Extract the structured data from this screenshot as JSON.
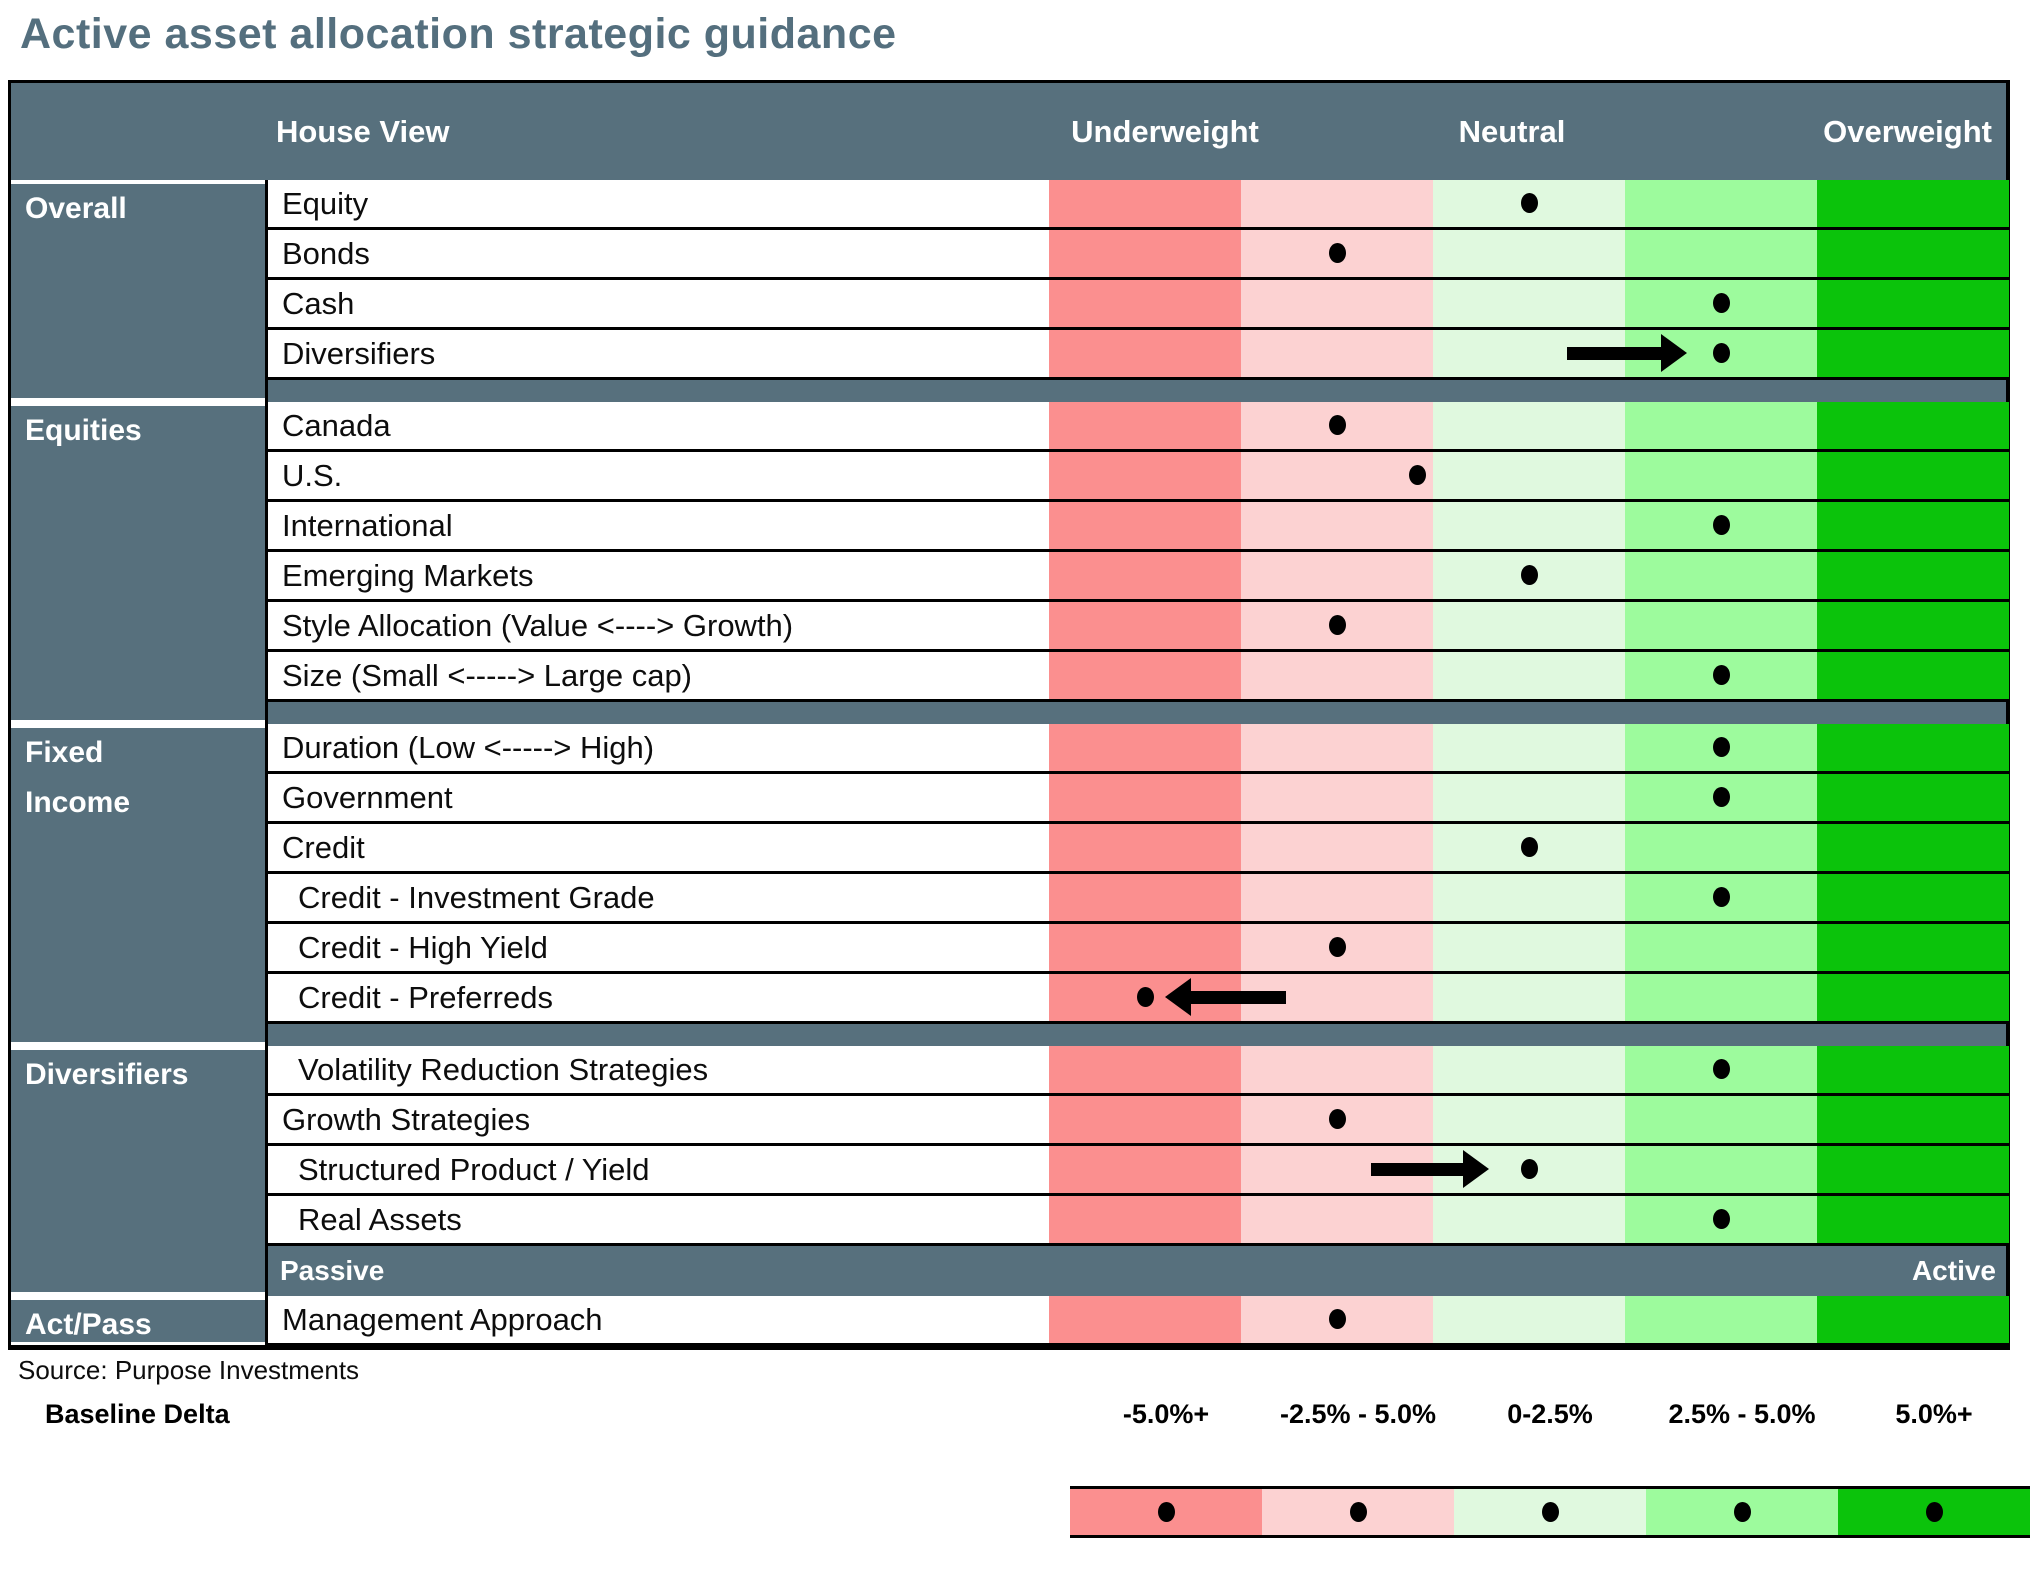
{
  "chart_data": {
    "type": "table",
    "title": "Active asset allocation strategic guidance",
    "header": {
      "house_view": "House View",
      "underweight": "Underweight",
      "neutral": "Neutral",
      "overweight": "Overweight"
    },
    "colors": {
      "slate": "#57707D",
      "title_text": "#546F7E",
      "dot": "#000000",
      "band_colors": [
        "#FB8F8F",
        "#FCD2D2",
        "#E0F9DF",
        "#9DFB9D",
        "#0BC30B"
      ]
    },
    "sections": [
      {
        "category": "Overall",
        "category_lines": [
          "Overall"
        ],
        "rows": [
          {
            "label": "Equity",
            "band": 3,
            "pos": 3.0,
            "indent": false,
            "arrow": null
          },
          {
            "label": "Bonds",
            "band": 2,
            "pos": 2.0,
            "indent": false,
            "arrow": null
          },
          {
            "label": "Cash",
            "band": 4,
            "pos": 4.0,
            "indent": false,
            "arrow": null
          },
          {
            "label": "Diversifiers",
            "band": 4,
            "pos": 4.0,
            "indent": false,
            "arrow": {
              "dir": "right",
              "from_f": 0.54,
              "to_f": 0.665
            }
          }
        ]
      },
      {
        "category": "Equities",
        "category_lines": [
          "Equities"
        ],
        "rows": [
          {
            "label": "Canada",
            "band": 2,
            "pos": 2.0,
            "indent": false,
            "arrow": null
          },
          {
            "label": "U.S.",
            "band": 2,
            "pos": 2.42,
            "indent": false,
            "arrow": null
          },
          {
            "label": "International",
            "band": 4,
            "pos": 4.0,
            "indent": false,
            "arrow": null
          },
          {
            "label": "Emerging Markets",
            "band": 3,
            "pos": 3.0,
            "indent": false,
            "arrow": null
          },
          {
            "label": "Style Allocation (Value <----> Growth)",
            "band": 2,
            "pos": 2.0,
            "indent": false,
            "arrow": null
          },
          {
            "label": "Size (Small <----->  Large cap)",
            "band": 4,
            "pos": 4.0,
            "indent": false,
            "arrow": null
          }
        ]
      },
      {
        "category": "Fixed Income",
        "category_lines": [
          "Fixed",
          "Income"
        ],
        "rows": [
          {
            "label": "Duration (Low <-----> High)",
            "band": 4,
            "pos": 4.0,
            "indent": false,
            "arrow": null
          },
          {
            "label": "Government",
            "band": 4,
            "pos": 4.0,
            "indent": false,
            "arrow": null
          },
          {
            "label": "Credit",
            "band": 3,
            "pos": 3.0,
            "indent": false,
            "arrow": null
          },
          {
            "label": "Credit - Investment Grade",
            "band": 4,
            "pos": 4.0,
            "indent": true,
            "arrow": null
          },
          {
            "label": "Credit - High Yield",
            "band": 2,
            "pos": 2.0,
            "indent": true,
            "arrow": null
          },
          {
            "label": "Credit - Preferreds",
            "band": 1,
            "pos": 1.0,
            "indent": true,
            "arrow": {
              "dir": "left",
              "from_f": 0.247,
              "to_f": 0.121
            }
          }
        ]
      },
      {
        "category": "Diversifiers",
        "category_lines": [
          "Diversifiers"
        ],
        "rows": [
          {
            "label": "Volatility Reduction Strategies",
            "band": 4,
            "pos": 4.0,
            "indent": true,
            "arrow": null
          },
          {
            "label": "Growth Strategies",
            "band": 2,
            "pos": 2.0,
            "indent": false,
            "arrow": null
          },
          {
            "label": "Structured Product / Yield",
            "band": 3,
            "pos": 3.0,
            "indent": true,
            "arrow": {
              "dir": "right",
              "from_f": 0.335,
              "to_f": 0.458
            }
          },
          {
            "label": "Real Assets",
            "band": 4,
            "pos": 4.0,
            "indent": true,
            "arrow": null
          }
        ]
      },
      {
        "category": "Act/Pass",
        "category_lines": [
          "Act/Pass"
        ],
        "rows": [
          {
            "label": "Management Approach",
            "band": 2,
            "pos": 2.0,
            "indent": false,
            "arrow": null
          }
        ]
      }
    ],
    "passive_active": {
      "left": "Passive",
      "right": "Active"
    },
    "footer": {
      "source": "Source: Purpose Investments",
      "baseline_label": "Baseline Delta",
      "scale_labels": [
        "-5.0%+",
        "-2.5% - 5.0%",
        "0-2.5%",
        "2.5% - 5.0%",
        "5.0%+"
      ]
    }
  }
}
